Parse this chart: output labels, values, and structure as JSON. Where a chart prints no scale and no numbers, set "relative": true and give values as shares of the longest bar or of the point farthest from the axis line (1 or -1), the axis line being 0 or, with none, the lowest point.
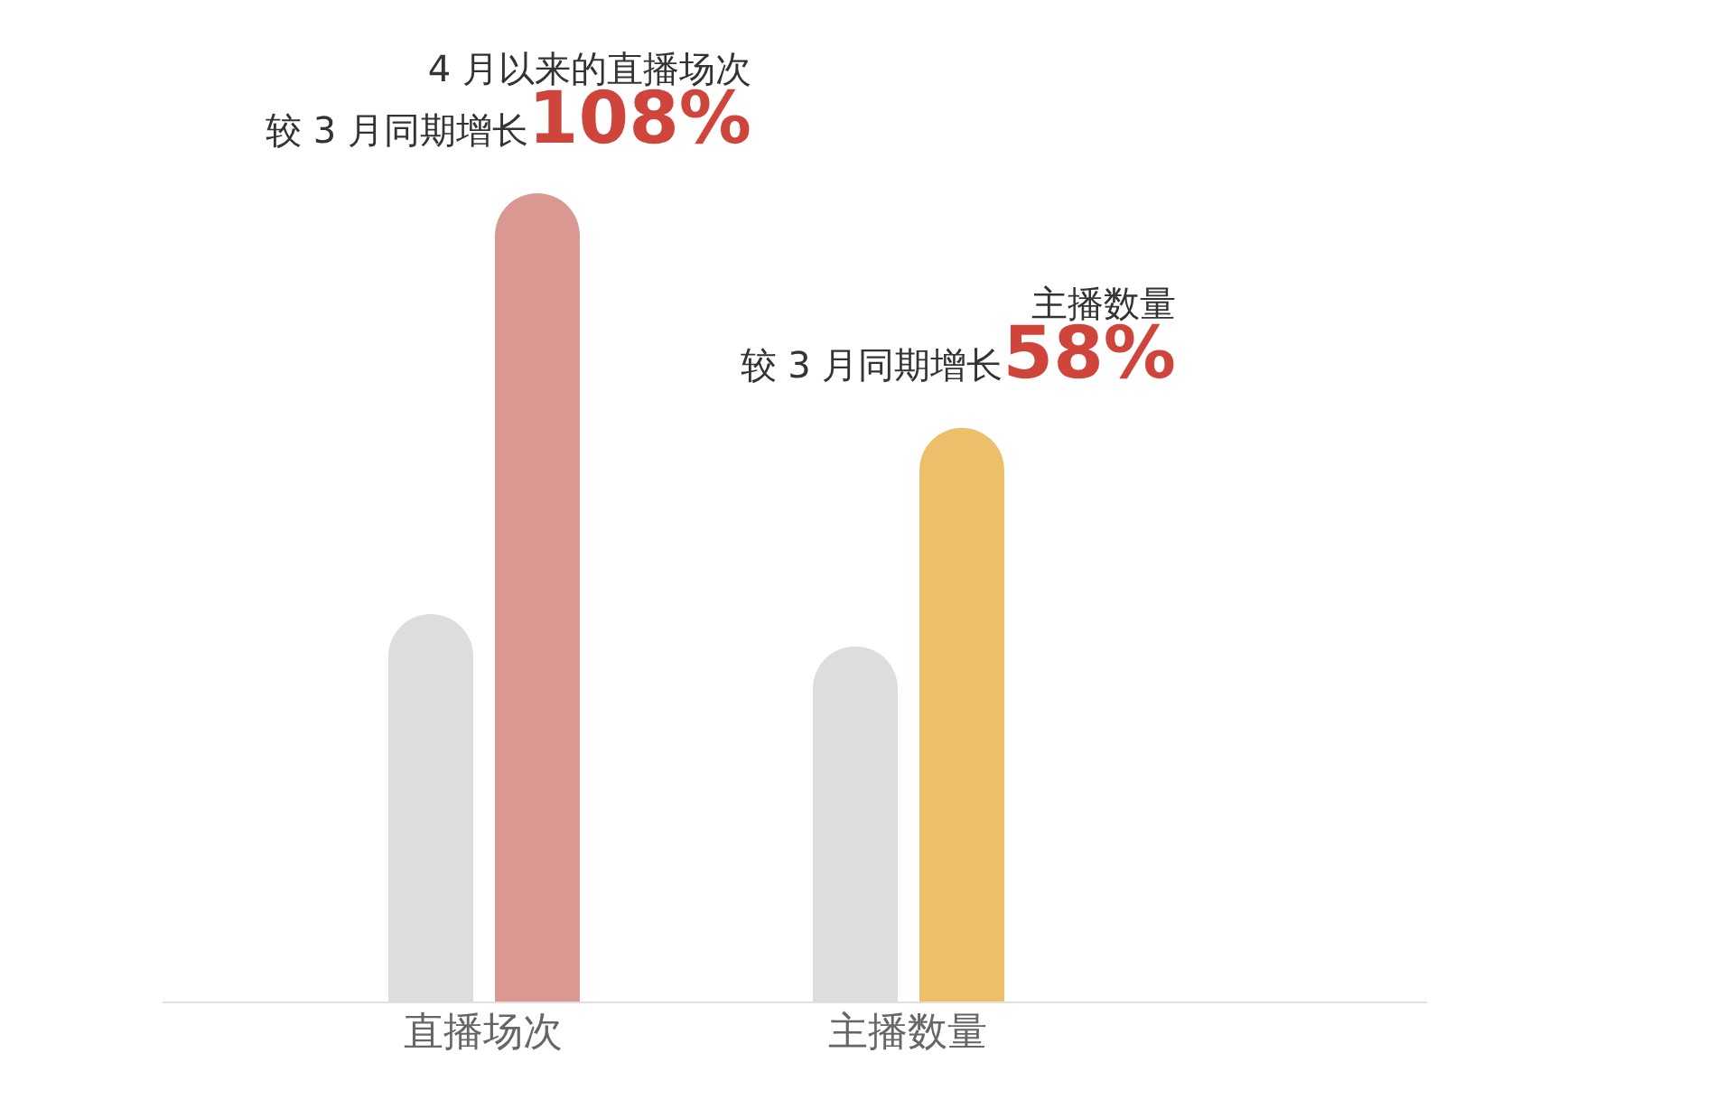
{
  "chart_data": {
    "type": "bar",
    "relative": true,
    "categories": [
      "直播场次",
      "主播数量"
    ],
    "series": [
      {
        "color": "#dddddd",
        "values": [
          0.48,
          0.44
        ]
      },
      {
        "colors": [
          "#d99891",
          "#ecc06b"
        ],
        "values": [
          1,
          0.71
        ]
      }
    ],
    "annotations": [
      "4 月以来的直播场次较 3 月同期增长108%",
      "主播数量较 3 月同期增长58%"
    ],
    "grid": false,
    "legend": false
  }
}
